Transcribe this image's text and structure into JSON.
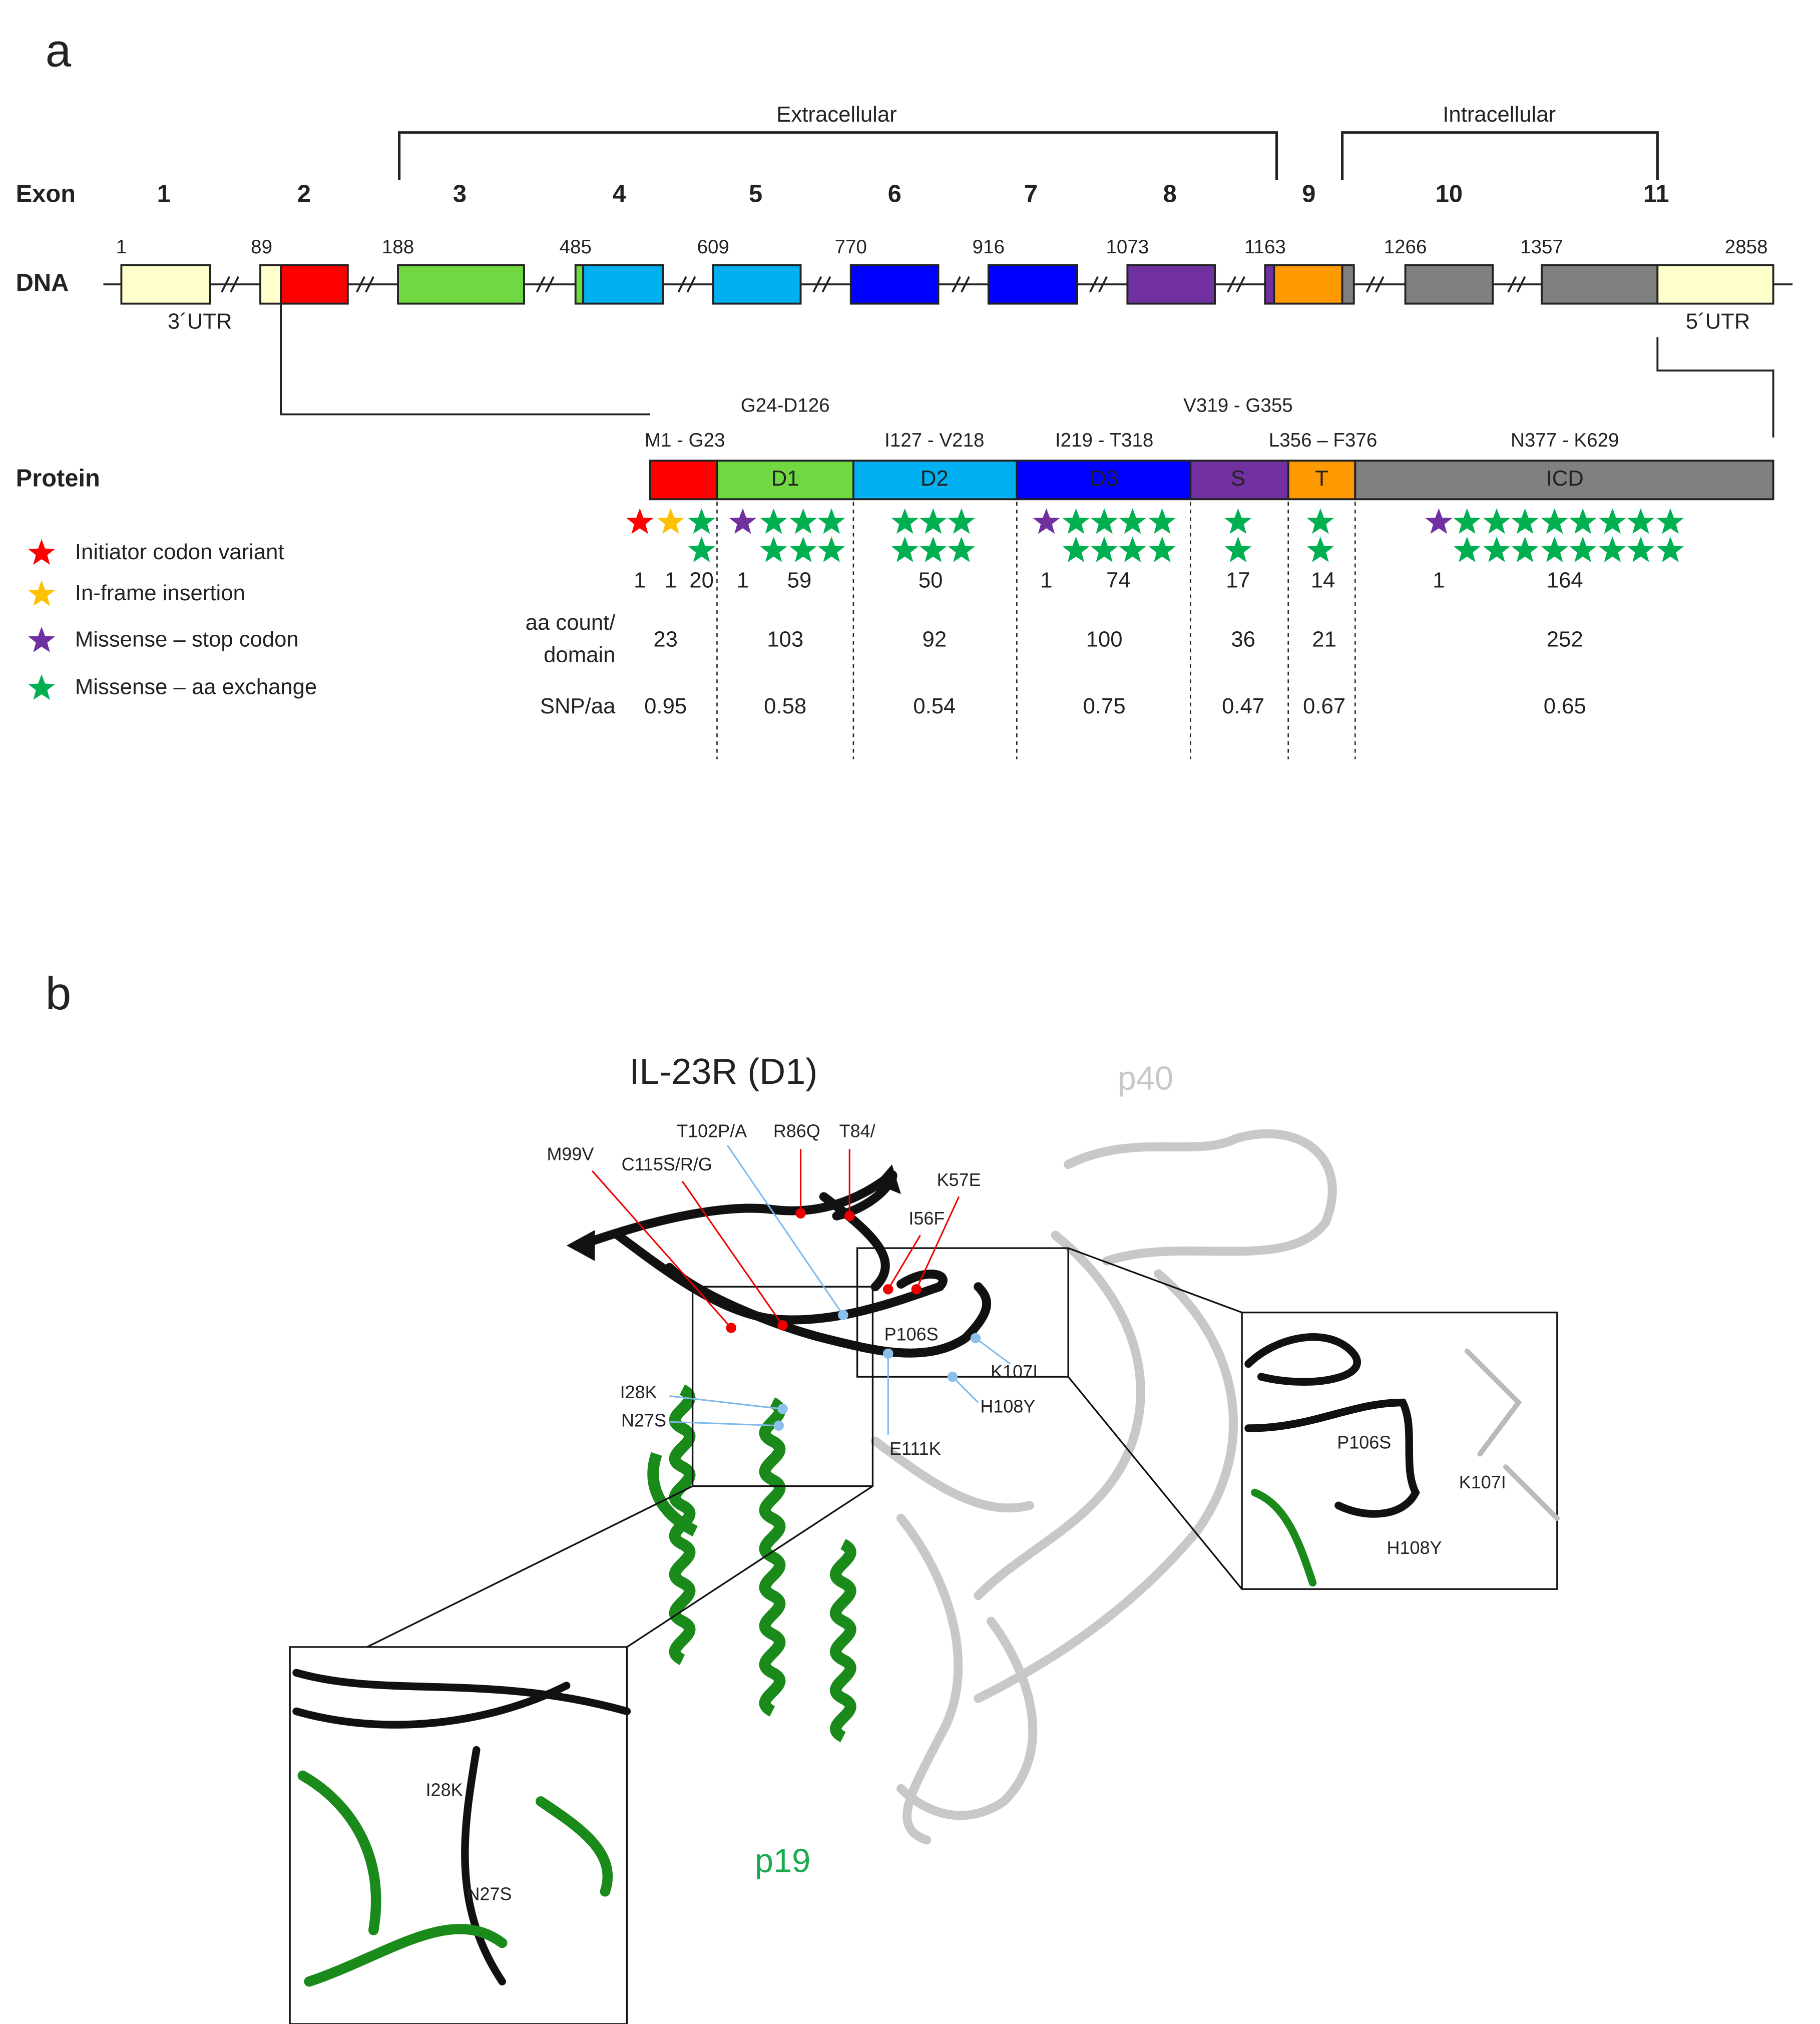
{
  "panel_a": {
    "label": "a",
    "regions": [
      "Extracellular",
      "Intracellular"
    ],
    "exon_label": "Exon",
    "exons": [
      "1",
      "2",
      "3",
      "4",
      "5",
      "6",
      "7",
      "8",
      "9",
      "10",
      "11"
    ],
    "dna_label": "DNA",
    "positions": [
      "1",
      "89",
      "188",
      "485",
      "609",
      "770",
      "916",
      "1073",
      "1163",
      "1266",
      "1357",
      "2858"
    ],
    "utr": [
      "3´UTR",
      "5´UTR"
    ],
    "protein_label": "Protein",
    "domain_ranges": [
      "M1 - G23",
      "G24-D126",
      "I127 - V218",
      "I219 - T318",
      "V319 - G355",
      "L356 – F376",
      "N377 - K629"
    ],
    "domains": [
      "D1",
      "D2",
      "D3",
      "S",
      "T",
      "ICD"
    ],
    "legend": [
      "Initiator codon variant",
      "In-frame insertion",
      "Missense – stop codon",
      "Missense – aa exchange"
    ],
    "counts": [
      "1",
      "1",
      "20",
      "1",
      "59",
      "50",
      "1",
      "74",
      "17",
      "14",
      "1",
      "164"
    ],
    "aa_label": [
      "aa count/",
      "domain"
    ],
    "aa_counts": [
      23,
      103,
      92,
      100,
      36,
      21,
      252
    ],
    "snp_label": "SNP/aa",
    "snp_per_aa": [
      0.95,
      0.58,
      0.54,
      0.75,
      0.47,
      0.67,
      0.65
    ]
  },
  "panel_b": {
    "label": "b",
    "title": "IL-23R (D1)",
    "p40": "p40",
    "p19": "p19",
    "mutations": [
      "M99V",
      "C115S/R/G",
      "T102P/A",
      "R86Q",
      "T84/",
      "K57E",
      "I56F",
      "P106S",
      "K107I",
      "H108Y",
      "I28K",
      "N27S",
      "E111K"
    ],
    "right_inset": [
      "P106S",
      "K107I",
      "H108Y"
    ],
    "left_inset": [
      "I28K",
      "N27S"
    ]
  }
}
